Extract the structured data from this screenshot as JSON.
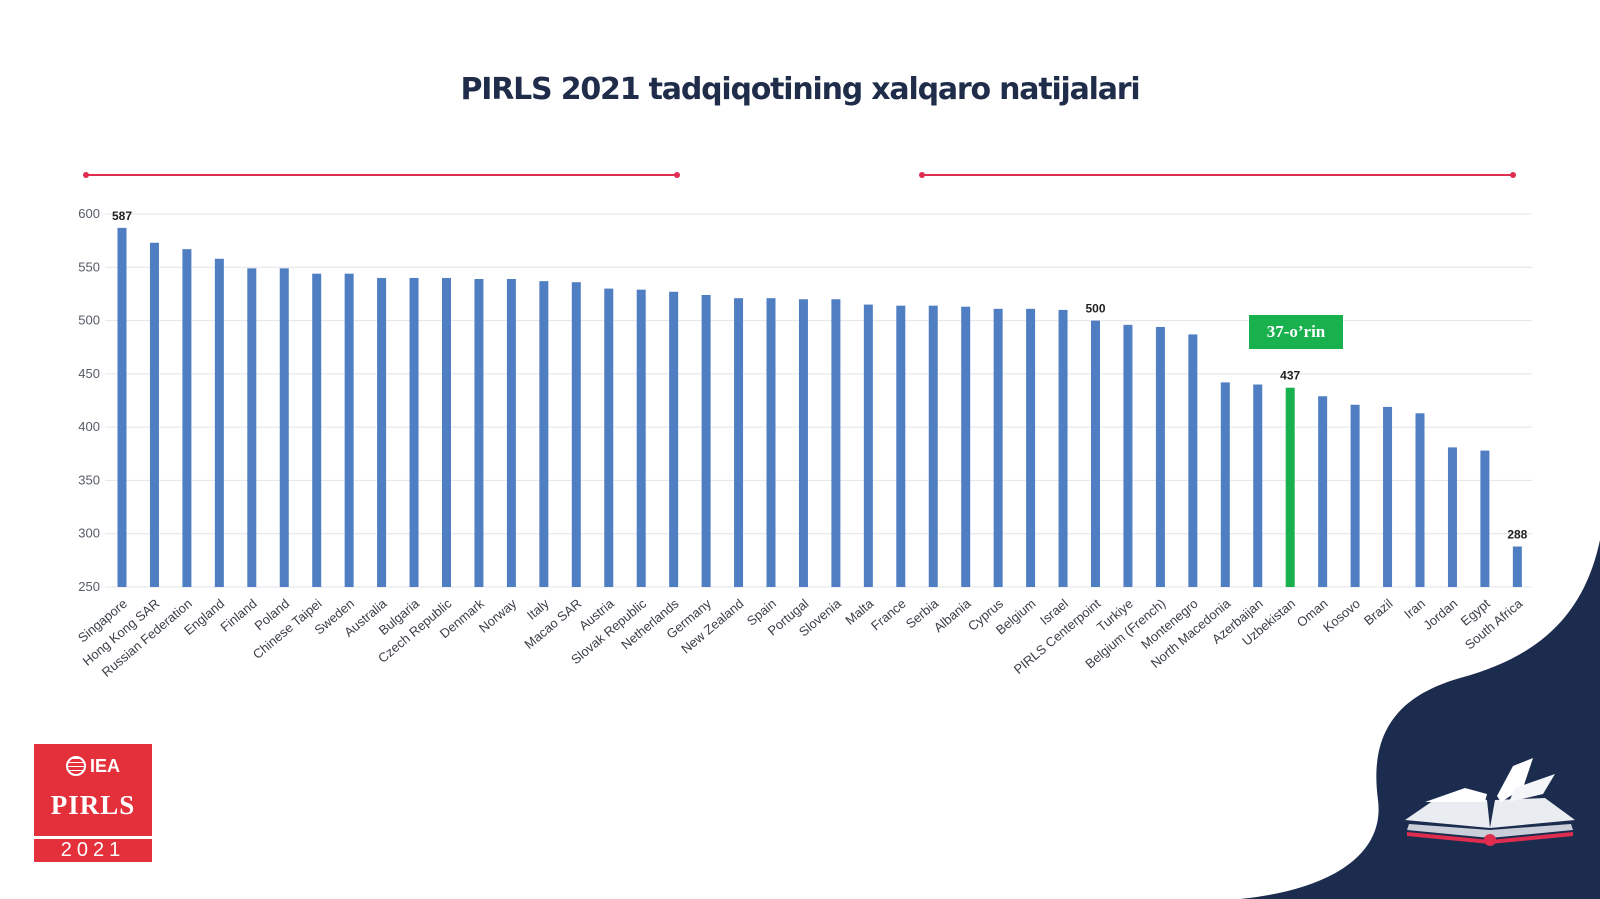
{
  "title": "PIRLS 2021 tadqiqotining xalqaro natijalari",
  "rank_badge": "37-o’rin",
  "logo": {
    "brand": "IEA",
    "name": "PIRLS",
    "year": "2021"
  },
  "colors": {
    "bar": "#4f7ec2",
    "highlight": "#19b04e",
    "bracket": "#e02d4f",
    "title": "#1f2d4a",
    "logo": "#e3303b",
    "navy": "#1c2c4e"
  },
  "chart_data": {
    "type": "bar",
    "title": "PIRLS 2021 tadqiqotining xalqaro natijalari",
    "xlabel": "",
    "ylabel": "",
    "ylim": [
      250,
      600
    ],
    "yticks": [
      250,
      300,
      350,
      400,
      450,
      500,
      550,
      600
    ],
    "grid": true,
    "highlight": "Uzbekistan",
    "categories": [
      "Singapore",
      "Hong Kong SAR",
      "Russian Federation",
      "England",
      "Finland",
      "Poland",
      "Chinese Taipei",
      "Sweden",
      "Australia",
      "Bulgaria",
      "Czech Republic",
      "Denmark",
      "Norway",
      "Italy",
      "Macao SAR",
      "Austria",
      "Slovak Republic",
      "Netherlands",
      "Germany",
      "New Zealand",
      "Spain",
      "Portugal",
      "Slovenia",
      "Malta",
      "France",
      "Serbia",
      "Albania",
      "Cyprus",
      "Belgium",
      "Israel",
      "PIRLS Centerpoint",
      "Turkiye",
      "Belgium (French)",
      "Montenegro",
      "North Macedonia",
      "Azerbaijan",
      "Uzbekistan",
      "Oman",
      "Kosovo",
      "Brazil",
      "Iran",
      "Jordan",
      "Egypt",
      "South Africa"
    ],
    "values": [
      587,
      573,
      567,
      558,
      549,
      549,
      544,
      544,
      540,
      540,
      540,
      539,
      539,
      537,
      536,
      530,
      529,
      527,
      524,
      521,
      521,
      520,
      520,
      515,
      514,
      514,
      513,
      511,
      511,
      510,
      500,
      496,
      494,
      487,
      442,
      440,
      437,
      429,
      421,
      419,
      413,
      381,
      378,
      288
    ],
    "data_labels": [
      {
        "category": "Singapore",
        "text": "587"
      },
      {
        "category": "PIRLS Centerpoint",
        "text": "500"
      },
      {
        "category": "Uzbekistan",
        "text": "437"
      },
      {
        "category": "South Africa",
        "text": "288"
      }
    ]
  }
}
